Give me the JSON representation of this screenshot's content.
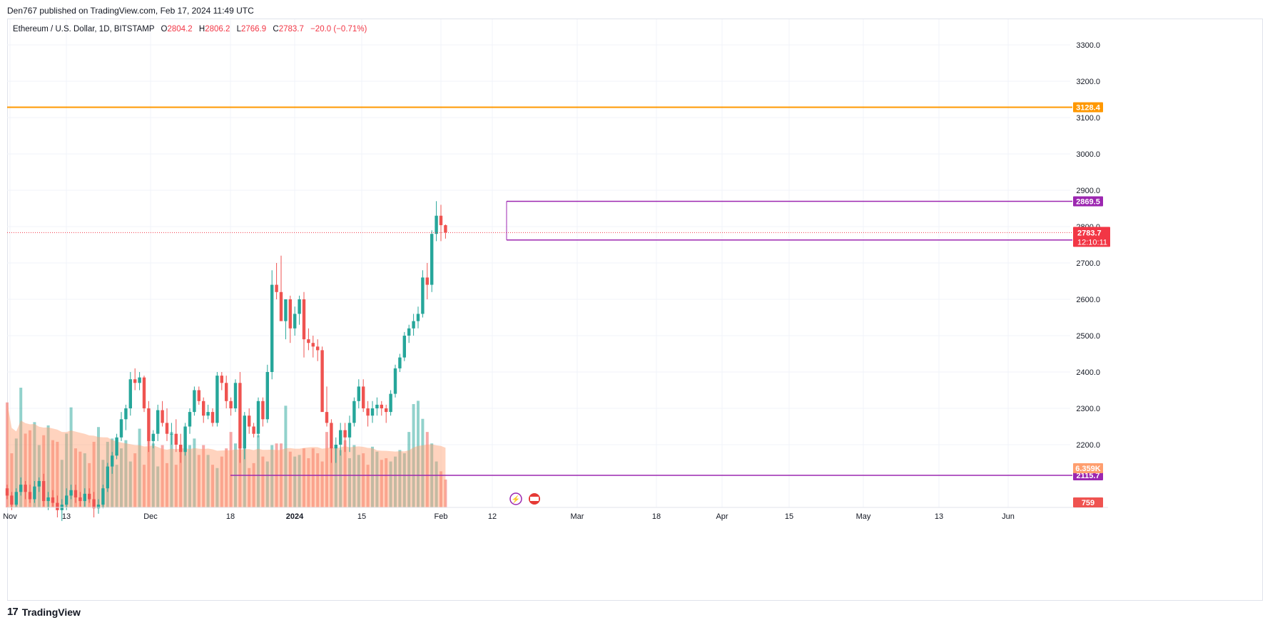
{
  "header": {
    "publisher": "Den767 published on TradingView.com, Feb 17, 2024 11:49 UTC"
  },
  "legend": {
    "symbol": "Ethereum / U.S. Dollar, 1D, BITSTAMP",
    "open_label": "O",
    "open": "2804.2",
    "high_label": "H",
    "high": "2806.2",
    "low_label": "L",
    "low": "2766.9",
    "close_label": "C",
    "close": "2783.7",
    "change": "−20.0 (−0.71%)"
  },
  "footer": {
    "brand": "TradingView",
    "logo_glyph": "17"
  },
  "colors": {
    "up": "#26a69a",
    "down": "#ef5350",
    "level": "#9c27b0",
    "orange": "#ff9800",
    "current": "#f23645"
  },
  "chart_data": {
    "type": "candlestick",
    "title": "Ethereum / U.S. Dollar, 1D, BITSTAMP",
    "y_axis": {
      "range": [
        2120,
        3360
      ],
      "ticks": [
        2200,
        2300,
        2400,
        2500,
        2600,
        2700,
        2800,
        2900,
        3000,
        3100,
        3200,
        3300
      ]
    },
    "x_axis": {
      "ticks": [
        "Nov",
        "13",
        "Dec",
        "18",
        "2024",
        "15",
        "Feb",
        "12",
        "Mar",
        "18",
        "Apr",
        "15",
        "May",
        "13",
        "Jun"
      ]
    },
    "horizontal_levels": [
      {
        "label": "3128.4",
        "value": 3128.4,
        "color": "#ff9800",
        "full_width": true
      },
      {
        "label": "2869.5",
        "value": 2869.5,
        "color": "#9c27b0",
        "full_width": false
      },
      {
        "label": "2763.2",
        "value": 2763.2,
        "color": "#9c27b0",
        "full_width": false
      },
      {
        "label": "2115.7",
        "value": 2115.7,
        "color": "#9c27b0",
        "full_width": false
      }
    ],
    "current_price": {
      "label": "2783.7",
      "value": 2783.7,
      "countdown": "12:10:11"
    },
    "volume_ma_label": "6.359K",
    "volume_label": "759",
    "candles_ohlc": [
      [
        2080,
        2090,
        2050,
        2060
      ],
      [
        2060,
        2070,
        2020,
        2035
      ],
      [
        2035,
        2080,
        2030,
        2070
      ],
      [
        2070,
        2110,
        2060,
        2090
      ],
      [
        2090,
        2100,
        2050,
        2070
      ],
      [
        2070,
        2090,
        2040,
        2050
      ],
      [
        2050,
        2100,
        2040,
        2085
      ],
      [
        2085,
        2110,
        2070,
        2100
      ],
      [
        2100,
        2120,
        2030,
        2045
      ],
      [
        2045,
        2070,
        2020,
        2055
      ],
      [
        2055,
        2075,
        2030,
        2040
      ],
      [
        2040,
        2060,
        2000,
        2020
      ],
      [
        2020,
        2050,
        1990,
        2035
      ],
      [
        2035,
        2080,
        2020,
        2060
      ],
      [
        2060,
        2090,
        2050,
        2075
      ],
      [
        2075,
        2090,
        2040,
        2055
      ],
      [
        2055,
        2070,
        2030,
        2045
      ],
      [
        2045,
        2080,
        2030,
        2065
      ],
      [
        2065,
        2080,
        2040,
        2050
      ],
      [
        2050,
        2070,
        2000,
        2025
      ],
      [
        2025,
        2050,
        2010,
        2035
      ],
      [
        2035,
        2090,
        2025,
        2080
      ],
      [
        2080,
        2150,
        2070,
        2140
      ],
      [
        2140,
        2180,
        2120,
        2170
      ],
      [
        2170,
        2230,
        2160,
        2220
      ],
      [
        2220,
        2290,
        2210,
        2270
      ],
      [
        2270,
        2310,
        2240,
        2300
      ],
      [
        2300,
        2400,
        2280,
        2380
      ],
      [
        2380,
        2410,
        2350,
        2370
      ],
      [
        2370,
        2400,
        2350,
        2385
      ],
      [
        2385,
        2390,
        2290,
        2300
      ],
      [
        2300,
        2320,
        2180,
        2210
      ],
      [
        2210,
        2240,
        2190,
        2230
      ],
      [
        2230,
        2310,
        2210,
        2295
      ],
      [
        2295,
        2320,
        2250,
        2260
      ],
      [
        2260,
        2300,
        2210,
        2230
      ],
      [
        2230,
        2260,
        2200,
        2230
      ],
      [
        2230,
        2270,
        2180,
        2200
      ],
      [
        2200,
        2230,
        2150,
        2180
      ],
      [
        2180,
        2260,
        2170,
        2250
      ],
      [
        2250,
        2300,
        2230,
        2290
      ],
      [
        2290,
        2360,
        2280,
        2350
      ],
      [
        2350,
        2360,
        2310,
        2320
      ],
      [
        2320,
        2330,
        2260,
        2280
      ],
      [
        2280,
        2310,
        2270,
        2290
      ],
      [
        2290,
        2300,
        2250,
        2260
      ],
      [
        2260,
        2400,
        2250,
        2390
      ],
      [
        2390,
        2400,
        2350,
        2370
      ],
      [
        2370,
        2390,
        2300,
        2320
      ],
      [
        2320,
        2330,
        2280,
        2300
      ],
      [
        2300,
        2380,
        2290,
        2370
      ],
      [
        2370,
        2400,
        2150,
        2190
      ],
      [
        2190,
        2290,
        2160,
        2280
      ],
      [
        2280,
        2300,
        2230,
        2250
      ],
      [
        2250,
        2260,
        2220,
        2230
      ],
      [
        2230,
        2330,
        2220,
        2320
      ],
      [
        2320,
        2330,
        2250,
        2270
      ],
      [
        2270,
        2420,
        2260,
        2400
      ],
      [
        2400,
        2680,
        2380,
        2640
      ],
      [
        2640,
        2700,
        2600,
        2620
      ],
      [
        2620,
        2720,
        2580,
        2540
      ],
      [
        2540,
        2600,
        2490,
        2600
      ],
      [
        2600,
        2610,
        2480,
        2520
      ],
      [
        2520,
        2580,
        2500,
        2560
      ],
      [
        2560,
        2610,
        2530,
        2600
      ],
      [
        2600,
        2620,
        2440,
        2490
      ],
      [
        2490,
        2520,
        2460,
        2480
      ],
      [
        2480,
        2500,
        2440,
        2470
      ],
      [
        2470,
        2490,
        2430,
        2460
      ],
      [
        2460,
        2470,
        2370,
        2290
      ],
      [
        2290,
        2360,
        2250,
        2260
      ],
      [
        2260,
        2270,
        2150,
        2190
      ],
      [
        2190,
        2220,
        2150,
        2200
      ],
      [
        2200,
        2260,
        2170,
        2240
      ],
      [
        2240,
        2260,
        2180,
        2220
      ],
      [
        2220,
        2280,
        2180,
        2260
      ],
      [
        2260,
        2330,
        2250,
        2320
      ],
      [
        2320,
        2380,
        2300,
        2360
      ],
      [
        2360,
        2380,
        2290,
        2300
      ],
      [
        2300,
        2320,
        2250,
        2280
      ],
      [
        2280,
        2320,
        2260,
        2300
      ],
      [
        2300,
        2330,
        2280,
        2310
      ],
      [
        2310,
        2320,
        2280,
        2300
      ],
      [
        2300,
        2310,
        2260,
        2290
      ],
      [
        2290,
        2350,
        2280,
        2340
      ],
      [
        2340,
        2420,
        2330,
        2410
      ],
      [
        2410,
        2450,
        2400,
        2440
      ],
      [
        2440,
        2510,
        2430,
        2500
      ],
      [
        2500,
        2530,
        2480,
        2520
      ],
      [
        2520,
        2560,
        2500,
        2540
      ],
      [
        2540,
        2580,
        2520,
        2560
      ],
      [
        2560,
        2680,
        2550,
        2660
      ],
      [
        2660,
        2700,
        2600,
        2640
      ],
      [
        2640,
        2790,
        2620,
        2780
      ],
      [
        2780,
        2870,
        2760,
        2830
      ],
      [
        2830,
        2860,
        2760,
        2804
      ],
      [
        2804,
        2806,
        2767,
        2784
      ]
    ],
    "volumes": [
      6.4,
      3.3,
      4.2,
      7.3,
      4.5,
      4.7,
      5.2,
      3.8,
      4.4,
      5.0,
      4.1,
      4.0,
      2.9,
      4.5,
      6.1,
      3.6,
      3.4,
      3.3,
      2.7,
      4.0,
      4.9,
      2.9,
      4.0,
      4.2,
      2.6,
      3.6,
      4.1,
      2.8,
      3.3,
      4.8,
      2.6,
      4.3,
      3.9,
      2.5,
      3.8,
      2.7,
      4.6,
      2.6,
      3.6,
      4.4,
      3.8,
      4.2,
      3.2,
      3.8,
      3.2,
      2.6,
      2.4,
      3.1,
      3.6,
      4.6,
      3.9,
      3.7,
      4.8,
      2.4,
      2.7,
      4.4,
      3.1,
      2.8,
      3.8,
      3.9,
      3.9,
      6.2,
      3.4,
      3.1,
      3.2,
      3.6,
      3.0,
      3.6,
      3.3,
      2.8,
      4.6,
      4.7,
      3.7,
      3.5,
      4.1,
      3.0,
      3.8,
      3.2,
      3.3,
      2.6,
      3.7,
      3.4,
      2.9,
      3.0,
      2.8,
      3.1,
      3.5,
      3.3,
      4.6,
      6.3,
      6.5,
      5.4,
      4.6,
      3.9,
      2.8,
      2.2,
      1.7
    ]
  }
}
